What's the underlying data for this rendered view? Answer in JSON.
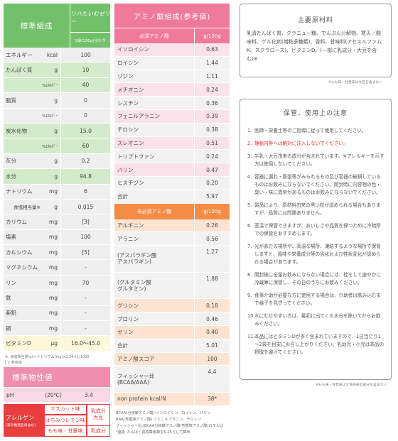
{
  "standard": {
    "title": "標準組成",
    "product_name": "リハたいむゼリー",
    "serving": "1袋(120g)当たり",
    "rows": [
      {
        "name": "エネルギー",
        "unit": "kcal",
        "value": "100",
        "style": "w"
      },
      {
        "name": "たんぱく質",
        "unit": "g",
        "value": "10",
        "style": "g"
      },
      {
        "name": "",
        "unit": "%ｴﾈﾙｷﾞｰ",
        "value": "40",
        "style": "g",
        "sub": true
      },
      {
        "name": "脂質",
        "unit": "g",
        "value": "0",
        "style": "w"
      },
      {
        "name": "",
        "unit": "%ｴﾈﾙｷﾞｰ",
        "value": "0",
        "style": "w",
        "sub": true
      },
      {
        "name": "炭水化物",
        "unit": "g",
        "value": "15.0",
        "style": "g"
      },
      {
        "name": "",
        "unit": "%ｴﾈﾙｷﾞｰ",
        "value": "60",
        "style": "g",
        "sub": true
      },
      {
        "name": "灰分",
        "unit": "g",
        "value": "0.2",
        "style": "w"
      },
      {
        "name": "水分",
        "unit": "g",
        "value": "94.8",
        "style": "g"
      },
      {
        "name": "ナトリウム",
        "unit": "mg",
        "value": "6",
        "style": "w"
      },
      {
        "name": "食塩相当量※",
        "unit": "g",
        "value": "0.015",
        "style": "w",
        "indent": true
      },
      {
        "name": "カリウム",
        "unit": "mg",
        "value": "[3]",
        "style": "w"
      },
      {
        "name": "塩素",
        "unit": "mg",
        "value": "100",
        "style": "w"
      },
      {
        "name": "カルシウム",
        "unit": "mg",
        "value": "[5]",
        "style": "w"
      },
      {
        "name": "マグネシウム",
        "unit": "mg",
        "value": "-",
        "style": "w"
      },
      {
        "name": "リン",
        "unit": "mg",
        "value": "70",
        "style": "w"
      },
      {
        "name": "鉄",
        "unit": "mg",
        "value": "-",
        "style": "w"
      },
      {
        "name": "亜鉛",
        "unit": "mg",
        "value": "-",
        "style": "w"
      },
      {
        "name": "銅",
        "unit": "mg",
        "value": "-",
        "style": "w"
      },
      {
        "name": "ビタミンD",
        "unit": "μg",
        "value": "16.0～45.0",
        "style": "y"
      }
    ],
    "note1": "※: 食塩相当量(g)＝ナトリウム(mg)×2.54×1/1000",
    "note2": "[ ]: 参考値"
  },
  "physical": {
    "title": "標準物性値",
    "name": "pH",
    "condition": "(20℃)",
    "value": "3.4"
  },
  "allergen": {
    "label": "アレルゲン",
    "sub": "(表示推奨品目含む)",
    "cells": [
      {
        "text": "マスカット味",
        "tall": false
      },
      {
        "lines": [
          "乳成分",
          "大豆"
        ],
        "tall": true
      },
      {
        "text": "はちみつレモン味",
        "tall": false
      },
      {
        "text": "もも味・甘夏味",
        "tall": false
      },
      {
        "text": "乳成分",
        "tall": false
      }
    ]
  },
  "amino": {
    "title": "アミノ酸組成(参考値)",
    "essential_label": "必須アミノ酸",
    "nonessential_label": "非必須アミノ酸",
    "unit_label": "g/120g",
    "essential": [
      {
        "name": "イソロイシン",
        "value": "0.63",
        "style": "p"
      },
      {
        "name": "ロイシン",
        "value": "1.44",
        "style": "w"
      },
      {
        "name": "リジン",
        "value": "1.11",
        "style": "w"
      },
      {
        "name": "メチオニン",
        "value": "0.24",
        "style": "p"
      },
      {
        "name": "シスチン",
        "value": "0.36",
        "style": "w"
      },
      {
        "name": "フェニルアラニン",
        "value": "0.39",
        "style": "p"
      },
      {
        "name": "チロシン",
        "value": "0.38",
        "style": "w"
      },
      {
        "name": "スレオニン",
        "value": "0.51",
        "style": "p"
      },
      {
        "name": "トリプトファン",
        "value": "0.24",
        "style": "w"
      },
      {
        "name": "バリン",
        "value": "0.47",
        "style": "p"
      },
      {
        "name": "ヒスチジン",
        "value": "0.20",
        "style": "w"
      },
      {
        "name": "合計",
        "value": "5.97",
        "style": "w"
      }
    ],
    "nonessential": [
      {
        "name": "アルギニン",
        "value": "0.26",
        "style": "o"
      },
      {
        "name": "アラニン",
        "value": "0.56",
        "style": "w"
      },
      {
        "name": "アスパラギン酸",
        "lines": [
          "(アスパラギン酸",
          "アスパラギン)"
        ],
        "value": "1.27",
        "style": "w",
        "multi": true
      },
      {
        "name": "グルタミン酸",
        "lines": [
          "(グルタミン酸",
          "グルタミン)"
        ],
        "value": "1.88",
        "style": "w",
        "multi": true
      },
      {
        "name": "グリシン",
        "value": "0.18",
        "style": "o"
      },
      {
        "name": "プロリン",
        "value": "0.46",
        "style": "w"
      },
      {
        "name": "セリン",
        "value": "0.40",
        "style": "o"
      },
      {
        "name": "合計",
        "value": "5.01",
        "style": "w"
      },
      {
        "name": "アミノ酸スコア",
        "value": "100",
        "style": "o"
      },
      {
        "name": "フィッシャー比 (BCAA/AAA)",
        "lines": [
          "フィッシャー比",
          "(BCAA/AAA)"
        ],
        "value": "4.4",
        "style": "w",
        "multi": true
      },
      {
        "name": "non protein kcal/N",
        "value": "38*",
        "style": "o"
      }
    ],
    "note_lines": [
      "BCAA(分岐鎖アミノ酸):イソロイシン、ロイシン、バリン",
      "AAA(芳香族アミノ酸):フェニルアラニン、チロシン",
      "フィッシャー比:(BCAA分岐鎖アミノ酸/芳香族アミノ酸)のモル比",
      "*窒素･たんぱく質換算係数を6.25として算出"
    ]
  },
  "ingredients": {
    "title": "主要原材料",
    "text": "乳清たんぱく質、グラニュー糖、でんぷん分解物、寒天／酸味料、ゲル化剤(増粘多糖類)、香料、甘味料(アセスルファムK、スクラロース)、ビタミンD、(一部に乳成分・大豆を含む)※",
    "note": "※もも味・甘夏味は大豆を含まない"
  },
  "care": {
    "title": "保管、使用上の注意",
    "items": [
      {
        "num": "1.",
        "text": "医師・栄養士等のご指導に従って使用してください。"
      },
      {
        "num": "2.",
        "text": "静脈内等へは絶対に注入しないでください。",
        "red": true
      },
      {
        "num": "3.",
        "text": "牛乳・大豆由来の成分が含まれています。※アレルギーを示す方は使用しないでください。"
      },
      {
        "num": "4.",
        "text": "容器に漏れ・膨張等がみられるもの及び容器の破損しているものはお飲みにならないでください。開封時に内容物の色・臭い・味に異常があるものはお飲みにならないでください。"
      },
      {
        "num": "5.",
        "text": "製品により、原材料由来の黒い粒が認められる場合もありますが、品質には問題ありません。"
      },
      {
        "num": "6.",
        "text": "室温で保管できますが、おいしさや品質を保つために冷暗所での保管をおすすめします。"
      },
      {
        "num": "7.",
        "text": "光があたる場所や、高温な場所、凍結するような場所で保管しますと、風味や栄養成分等の劣化および性状変化が認められる場合があります。"
      },
      {
        "num": "8.",
        "text": "開封後に全量お飲みにならない場合には、栓をして速やかに冷蔵庫に保管し、その日のうちにお飲みください。"
      },
      {
        "num": "9.",
        "text": "食事介助が必要な方に使用する場合は、介助者は飲み込むまで様子を見守ってください。"
      },
      {
        "num": "10.",
        "text": "水にむせやすい方は、最初に出てくる水分を除いてからお飲みください。"
      },
      {
        "num": "11.",
        "text": "本品にはビタミンDが多く含まれていますので、1日当たり1～2袋を目安にお召し上がりください。乳幼児・小児は本品の摂取を避けてください。"
      }
    ],
    "note": "※もも味・甘夏味は大豆由来の成分を含まない"
  }
}
